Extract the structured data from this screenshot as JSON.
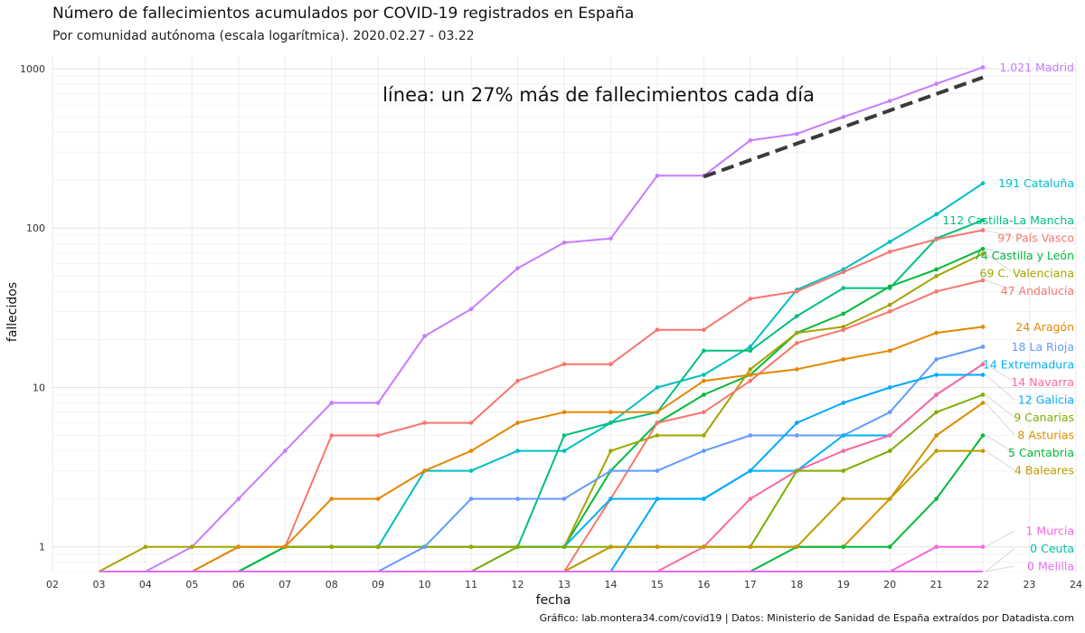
{
  "chart_data": {
    "type": "line",
    "title": "Número de fallecimientos acumulados por COVID-19 registrados en España",
    "subtitle": "Por comunidad autónoma (escala logarítmica). 2020.02.27 - 03.22",
    "xlabel": "fecha",
    "ylabel": "fallecidos",
    "caption": "Gráfico: lab.montera34.com/covid19 | Datos: Ministerio de Sanidad de España extraídos por Datadista.com",
    "annotation": "línea: un 27% más de fallecimientos cada día",
    "yscale": "log",
    "ylim": [
      0.7,
      1200
    ],
    "xlim": [
      2,
      24
    ],
    "xticks": [
      "02",
      "03",
      "04",
      "05",
      "06",
      "07",
      "08",
      "09",
      "10",
      "11",
      "12",
      "13",
      "14",
      "15",
      "16",
      "17",
      "18",
      "19",
      "20",
      "21",
      "22",
      "23",
      "24"
    ],
    "yticks": [
      {
        "value": 1,
        "label": "1"
      },
      {
        "value": 10,
        "label": "10"
      },
      {
        "value": 100,
        "label": "100"
      },
      {
        "value": 1000,
        "label": "1000"
      }
    ],
    "grid": true,
    "legend": "labels at line ends",
    "x": [
      3,
      4,
      5,
      6,
      7,
      8,
      9,
      10,
      11,
      12,
      13,
      14,
      15,
      16,
      17,
      18,
      19,
      20,
      21,
      22
    ],
    "trend": {
      "x": [
        16,
        17,
        18,
        19,
        20,
        21,
        22
      ],
      "y": [
        210,
        267,
        339,
        430,
        547,
        694,
        882
      ],
      "color": "#3a3a3a"
    },
    "series": [
      {
        "name": "Madrid",
        "label": "1.021 Madrid",
        "color": "#C77CFF",
        "values": [
          0,
          0,
          1,
          2,
          4,
          8,
          8,
          21,
          31,
          56,
          81,
          86,
          213,
          213,
          355,
          390,
          498,
          628,
          804,
          1021
        ]
      },
      {
        "name": "Cataluña",
        "label": "191 Cataluña",
        "color": "#00BFC4",
        "values": [
          0,
          0,
          0,
          0,
          1,
          1,
          1,
          3,
          3,
          4,
          4,
          6,
          10,
          12,
          18,
          41,
          55,
          82,
          122,
          191
        ]
      },
      {
        "name": "Castilla-La Mancha",
        "label": "112 Castilla-La Mancha",
        "color": "#00BF7D",
        "values": [
          0,
          0,
          0,
          0,
          1,
          1,
          1,
          1,
          1,
          1,
          5,
          6,
          7,
          17,
          17,
          28,
          42,
          42,
          86,
          112
        ]
      },
      {
        "name": "País Vasco",
        "label": "97 País Vasco",
        "color": "#F8766D",
        "values": [
          0,
          0,
          0,
          1,
          1,
          5,
          5,
          6,
          6,
          11,
          14,
          14,
          23,
          23,
          36,
          40,
          53,
          71,
          85,
          97
        ]
      },
      {
        "name": "Castilla y León",
        "label": "74 Castilla y León",
        "color": "#00BA38",
        "values": [
          0,
          0,
          0,
          0,
          1,
          1,
          1,
          1,
          1,
          1,
          1,
          3,
          6,
          9,
          12,
          22,
          29,
          43,
          55,
          74
        ]
      },
      {
        "name": "C. Valenciana",
        "label": "69 C. Valenciana",
        "color": "#A3A500",
        "values": [
          0,
          1,
          1,
          1,
          1,
          1,
          1,
          1,
          1,
          1,
          1,
          4,
          5,
          5,
          13,
          22,
          24,
          33,
          50,
          69
        ]
      },
      {
        "name": "Andalucía",
        "label": "47 Andalucía",
        "color": "#F8766D",
        "values": [
          0,
          0,
          0,
          0,
          0,
          0,
          0,
          0,
          0,
          0,
          0,
          2,
          6,
          7,
          11,
          19,
          23,
          30,
          40,
          47
        ]
      },
      {
        "name": "Aragón",
        "label": "24 Aragón",
        "color": "#E58700",
        "values": [
          0,
          0,
          0,
          1,
          1,
          2,
          2,
          3,
          4,
          6,
          7,
          7,
          7,
          11,
          12,
          13,
          15,
          17,
          22,
          24
        ]
      },
      {
        "name": "La Rioja",
        "label": "18 La Rioja",
        "color": "#619CFF",
        "values": [
          0,
          0,
          0,
          0,
          0,
          0,
          0,
          1,
          2,
          2,
          2,
          3,
          3,
          4,
          5,
          5,
          5,
          7,
          15,
          18
        ]
      },
      {
        "name": "Extremadura",
        "label": "14 Extremadura",
        "color": "#00B0F6",
        "values": [
          0,
          0,
          0,
          0,
          0,
          0,
          0,
          0,
          0,
          1,
          1,
          2,
          2,
          2,
          3,
          3,
          5,
          5,
          9,
          14
        ]
      },
      {
        "name": "Navarra",
        "label": "14 Navarra",
        "color": "#FF67A4",
        "values": [
          0,
          0,
          0,
          0,
          0,
          0,
          0,
          0,
          0,
          0,
          0,
          0,
          0,
          1,
          2,
          3,
          4,
          5,
          9,
          14
        ]
      },
      {
        "name": "Galicia",
        "label": "12 Galicia",
        "color": "#00A9FF",
        "values": [
          0,
          0,
          0,
          0,
          0,
          0,
          0,
          0,
          0,
          0,
          0,
          0,
          2,
          2,
          3,
          6,
          8,
          10,
          12,
          12
        ]
      },
      {
        "name": "Canarias",
        "label": "9 Canarias",
        "color": "#7CAE00",
        "values": [
          0,
          0,
          0,
          0,
          0,
          0,
          0,
          0,
          0,
          1,
          1,
          1,
          1,
          1,
          1,
          3,
          3,
          4,
          7,
          9
        ]
      },
      {
        "name": "Asturias",
        "label": "8 Asturias",
        "color": "#D89000",
        "values": [
          0,
          0,
          0,
          0,
          0,
          0,
          0,
          0,
          0,
          0,
          0,
          1,
          1,
          1,
          1,
          1,
          1,
          2,
          5,
          8
        ]
      },
      {
        "name": "Cantabria",
        "label": "5 Cantabria",
        "color": "#00BA38",
        "values": [
          0,
          0,
          0,
          0,
          0,
          0,
          0,
          0,
          0,
          0,
          0,
          0,
          0,
          0,
          0,
          1,
          1,
          1,
          2,
          5
        ]
      },
      {
        "name": "Baleares",
        "label": "4 Baleares",
        "color": "#C09B00",
        "values": [
          0,
          0,
          0,
          0,
          0,
          0,
          0,
          0,
          0,
          0,
          0,
          1,
          1,
          1,
          1,
          1,
          2,
          2,
          4,
          4
        ]
      },
      {
        "name": "Murcia",
        "label": "1 Murcia",
        "color": "#F564E3",
        "values": [
          0,
          0,
          0,
          0,
          0,
          0,
          0,
          0,
          0,
          0,
          0,
          0,
          0,
          0,
          0,
          0,
          0,
          0,
          1,
          1
        ]
      },
      {
        "name": "Ceuta",
        "label": "0 Ceuta",
        "color": "#00C1A9",
        "values": [
          0,
          0,
          0,
          0,
          0,
          0,
          0,
          0,
          0,
          0,
          0,
          0,
          0,
          0,
          0,
          0,
          0,
          0,
          0,
          0
        ]
      },
      {
        "name": "Melilla",
        "label": "0 Melilla",
        "color": "#E76BF3",
        "values": [
          0,
          0,
          0,
          0,
          0,
          0,
          0,
          0,
          0,
          0,
          0,
          0,
          0,
          0,
          0,
          0,
          0,
          0,
          0,
          0
        ]
      }
    ]
  }
}
